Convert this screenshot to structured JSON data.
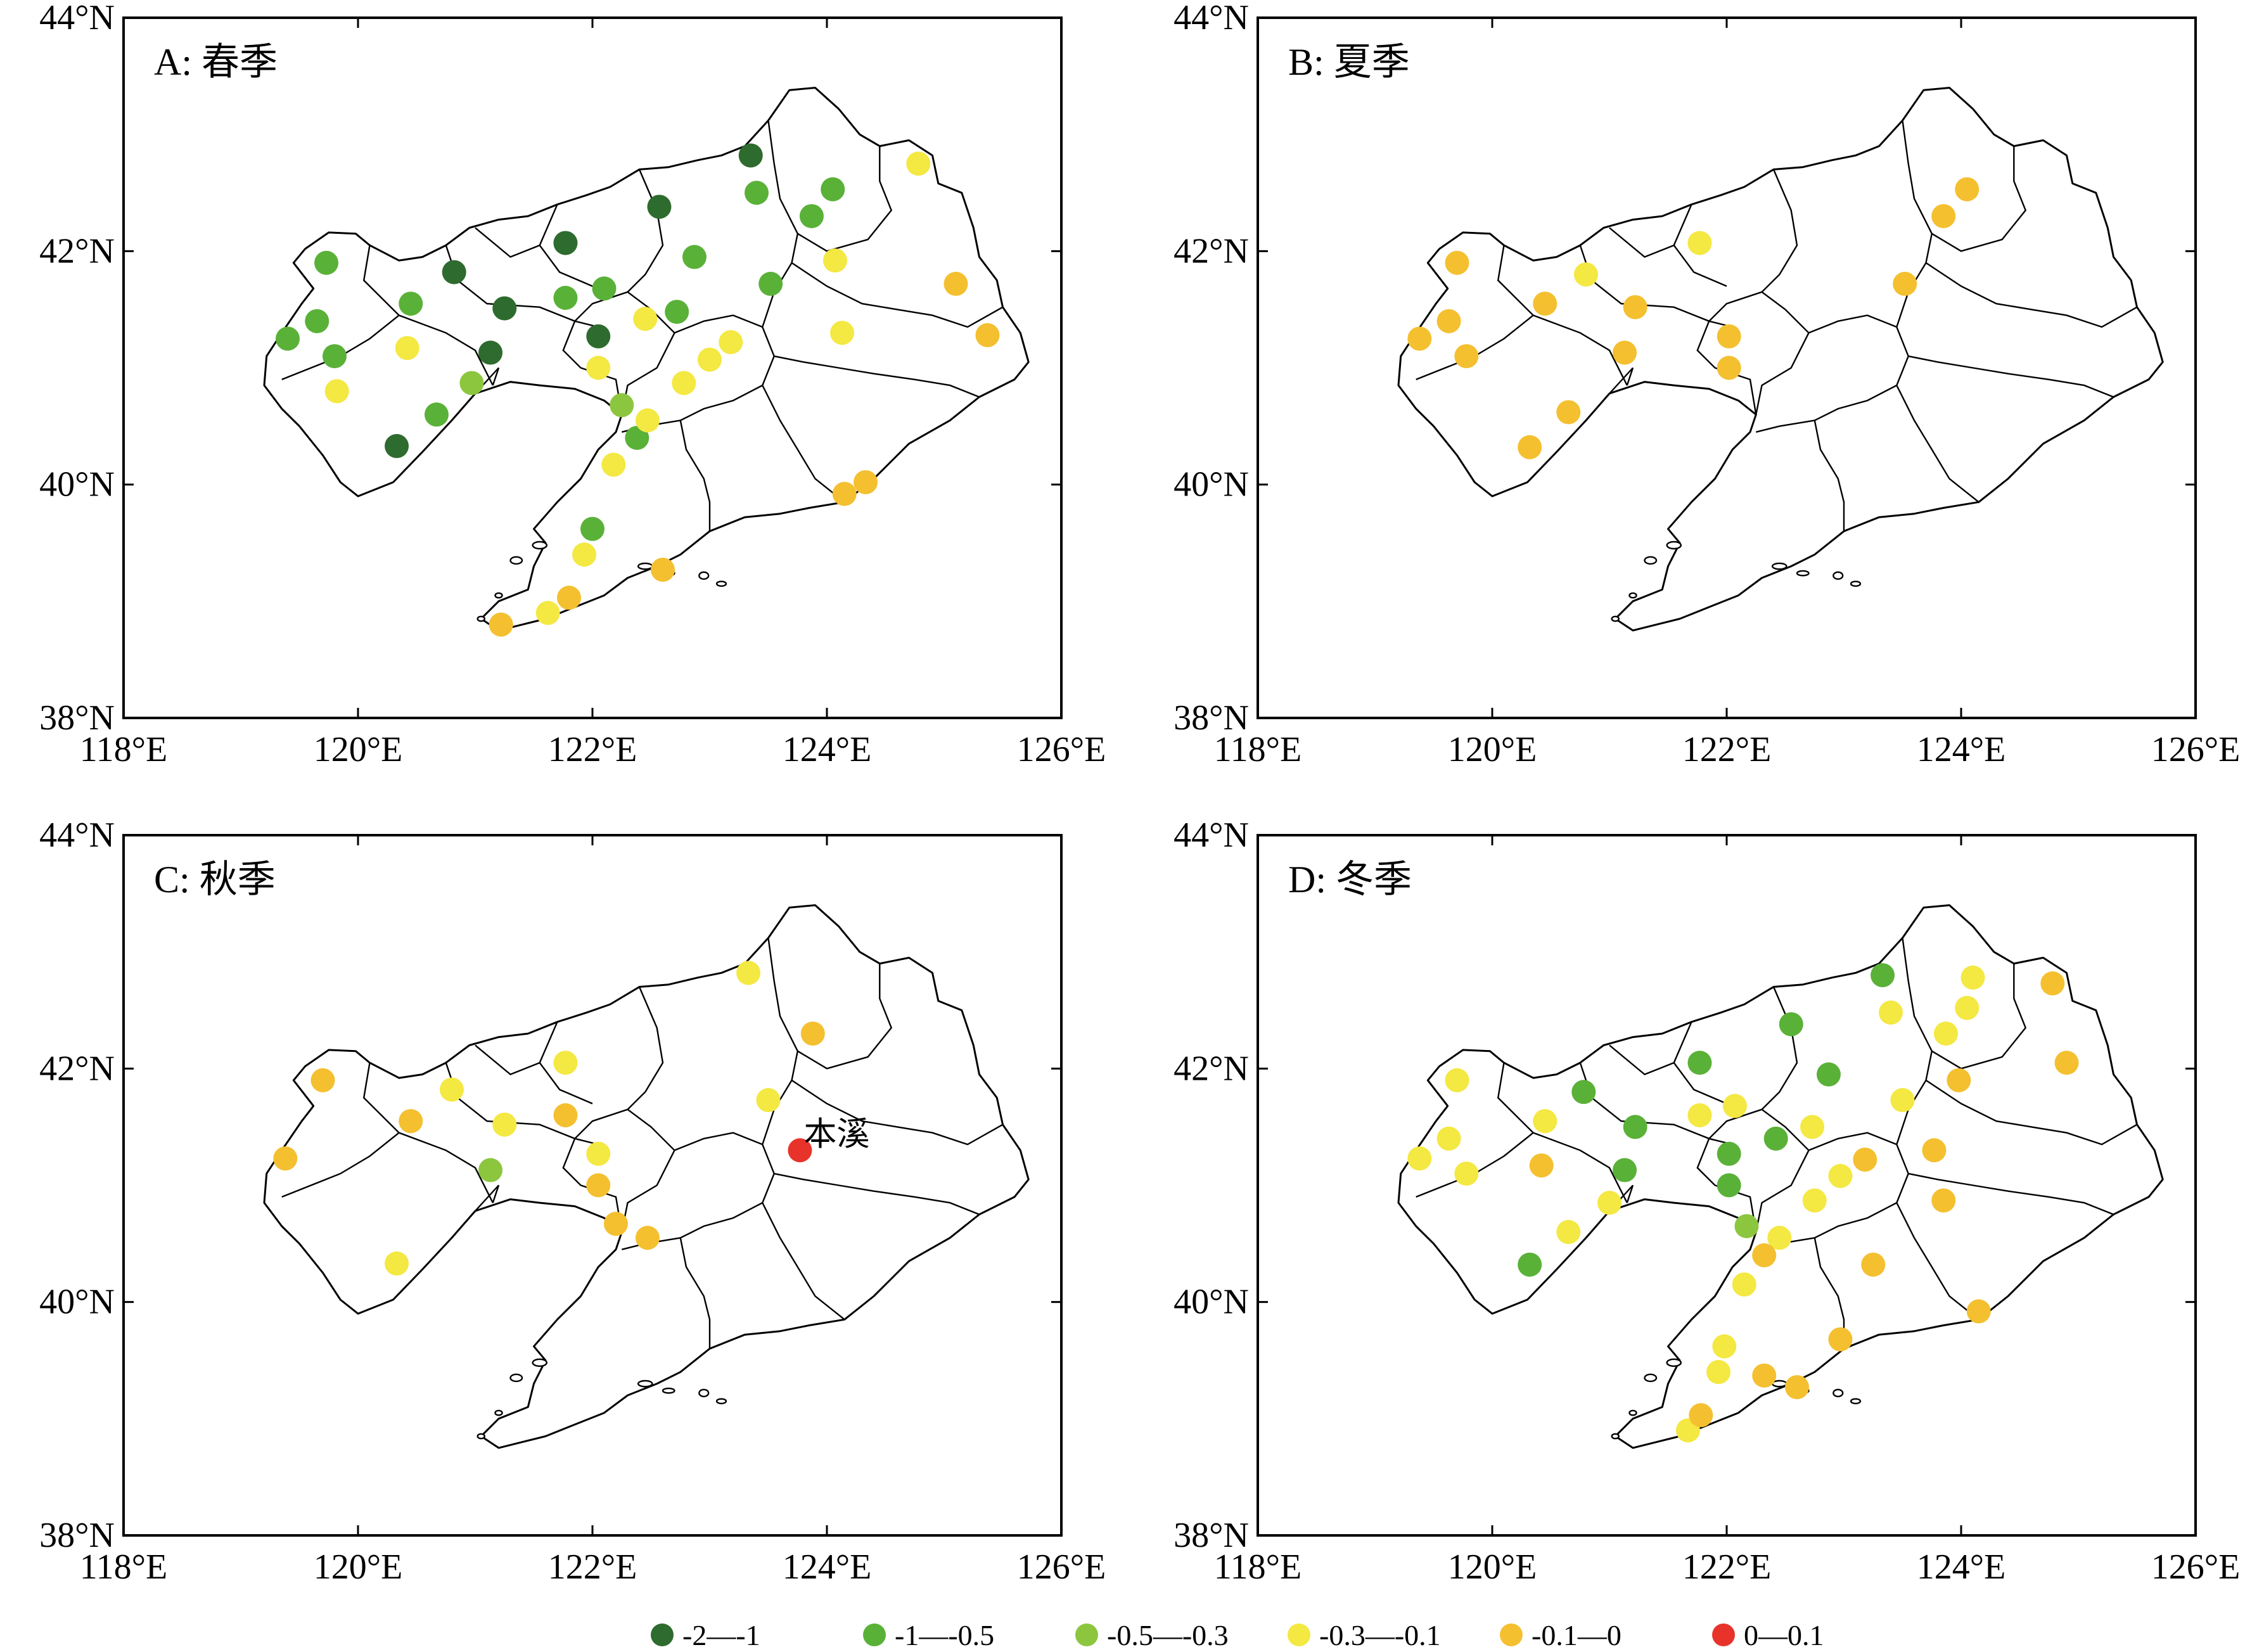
{
  "map": {
    "x_ticks": [
      "118°E",
      "120°E",
      "122°E",
      "124°E",
      "126°E"
    ],
    "y_ticks": [
      "44°N",
      "42°N",
      "40°N",
      "38°N"
    ],
    "colors": {
      "c1": "#2e6b2e",
      "c2": "#5ab138",
      "c3": "#8cc63f",
      "c4": "#f4e842",
      "c5": "#f4c030",
      "c6": "#e8332a"
    },
    "legend": [
      {
        "key": "c1",
        "label": "-2—-1"
      },
      {
        "key": "c2",
        "label": "-1—-0.5"
      },
      {
        "key": "c3",
        "label": "-0.5—-0.3"
      },
      {
        "key": "c4",
        "label": "-0.3—-0.1"
      },
      {
        "key": "c5",
        "label": "-0.1—0"
      },
      {
        "key": "c6",
        "label": "0—0.1"
      }
    ],
    "panels": [
      {
        "title": "A: 春季",
        "stations": [
          {
            "lon": 123.35,
            "lat": 42.82,
            "c": "c1"
          },
          {
            "lon": 122.57,
            "lat": 42.38,
            "c": "c1"
          },
          {
            "lon": 121.77,
            "lat": 42.07,
            "c": "c1"
          },
          {
            "lon": 120.82,
            "lat": 41.82,
            "c": "c1"
          },
          {
            "lon": 121.25,
            "lat": 41.51,
            "c": "c1"
          },
          {
            "lon": 121.13,
            "lat": 41.13,
            "c": "c1"
          },
          {
            "lon": 122.05,
            "lat": 41.27,
            "c": "c1"
          },
          {
            "lon": 120.33,
            "lat": 40.33,
            "c": "c1"
          },
          {
            "lon": 123.4,
            "lat": 42.5,
            "c": "c2"
          },
          {
            "lon": 124.05,
            "lat": 42.53,
            "c": "c2"
          },
          {
            "lon": 123.87,
            "lat": 42.3,
            "c": "c2"
          },
          {
            "lon": 119.73,
            "lat": 41.9,
            "c": "c2"
          },
          {
            "lon": 122.87,
            "lat": 41.95,
            "c": "c2"
          },
          {
            "lon": 120.45,
            "lat": 41.55,
            "c": "c2"
          },
          {
            "lon": 121.77,
            "lat": 41.6,
            "c": "c2"
          },
          {
            "lon": 122.1,
            "lat": 41.68,
            "c": "c2"
          },
          {
            "lon": 123.52,
            "lat": 41.72,
            "c": "c2"
          },
          {
            "lon": 119.65,
            "lat": 41.4,
            "c": "c2"
          },
          {
            "lon": 119.4,
            "lat": 41.25,
            "c": "c2"
          },
          {
            "lon": 119.8,
            "lat": 41.1,
            "c": "c2"
          },
          {
            "lon": 122.72,
            "lat": 41.48,
            "c": "c2"
          },
          {
            "lon": 120.67,
            "lat": 40.6,
            "c": "c2"
          },
          {
            "lon": 122.38,
            "lat": 40.4,
            "c": "c2"
          },
          {
            "lon": 122.0,
            "lat": 39.62,
            "c": "c2"
          },
          {
            "lon": 120.97,
            "lat": 40.87,
            "c": "c3"
          },
          {
            "lon": 122.25,
            "lat": 40.68,
            "c": "c3"
          },
          {
            "lon": 124.78,
            "lat": 42.75,
            "c": "c4"
          },
          {
            "lon": 124.07,
            "lat": 41.92,
            "c": "c4"
          },
          {
            "lon": 122.45,
            "lat": 41.42,
            "c": "c4"
          },
          {
            "lon": 124.13,
            "lat": 41.3,
            "c": "c4"
          },
          {
            "lon": 123.18,
            "lat": 41.22,
            "c": "c4"
          },
          {
            "lon": 120.42,
            "lat": 41.17,
            "c": "c4"
          },
          {
            "lon": 123.0,
            "lat": 41.07,
            "c": "c4"
          },
          {
            "lon": 122.05,
            "lat": 41.0,
            "c": "c4"
          },
          {
            "lon": 122.78,
            "lat": 40.87,
            "c": "c4"
          },
          {
            "lon": 119.82,
            "lat": 40.8,
            "c": "c4"
          },
          {
            "lon": 122.47,
            "lat": 40.55,
            "c": "c4"
          },
          {
            "lon": 122.18,
            "lat": 40.17,
            "c": "c4"
          },
          {
            "lon": 121.93,
            "lat": 39.4,
            "c": "c4"
          },
          {
            "lon": 121.62,
            "lat": 38.9,
            "c": "c4"
          },
          {
            "lon": 125.1,
            "lat": 41.72,
            "c": "c5"
          },
          {
            "lon": 125.37,
            "lat": 41.28,
            "c": "c5"
          },
          {
            "lon": 124.33,
            "lat": 40.02,
            "c": "c5"
          },
          {
            "lon": 124.15,
            "lat": 39.92,
            "c": "c5"
          },
          {
            "lon": 121.8,
            "lat": 39.03,
            "c": "c5"
          },
          {
            "lon": 122.6,
            "lat": 39.27,
            "c": "c5"
          },
          {
            "lon": 121.22,
            "lat": 38.8,
            "c": "c5"
          }
        ]
      },
      {
        "title": "B: 夏季",
        "stations": [
          {
            "lon": 121.77,
            "lat": 42.07,
            "c": "c4"
          },
          {
            "lon": 120.8,
            "lat": 41.8,
            "c": "c4"
          },
          {
            "lon": 124.05,
            "lat": 42.53,
            "c": "c5"
          },
          {
            "lon": 123.85,
            "lat": 42.3,
            "c": "c5"
          },
          {
            "lon": 119.7,
            "lat": 41.9,
            "c": "c5"
          },
          {
            "lon": 123.52,
            "lat": 41.72,
            "c": "c5"
          },
          {
            "lon": 120.45,
            "lat": 41.55,
            "c": "c5"
          },
          {
            "lon": 121.22,
            "lat": 41.52,
            "c": "c5"
          },
          {
            "lon": 119.63,
            "lat": 41.4,
            "c": "c5"
          },
          {
            "lon": 122.02,
            "lat": 41.27,
            "c": "c5"
          },
          {
            "lon": 119.38,
            "lat": 41.25,
            "c": "c5"
          },
          {
            "lon": 121.13,
            "lat": 41.13,
            "c": "c5"
          },
          {
            "lon": 119.78,
            "lat": 41.1,
            "c": "c5"
          },
          {
            "lon": 122.02,
            "lat": 41.0,
            "c": "c5"
          },
          {
            "lon": 120.65,
            "lat": 40.62,
            "c": "c5"
          },
          {
            "lon": 120.32,
            "lat": 40.32,
            "c": "c5"
          }
        ]
      },
      {
        "title": "C: 秋季",
        "station_label": {
          "text": "本溪",
          "lon": 123.77,
          "lat": 41.3
        },
        "stations": [
          {
            "lon": 121.13,
            "lat": 41.13,
            "c": "c3"
          },
          {
            "lon": 123.33,
            "lat": 42.82,
            "c": "c4"
          },
          {
            "lon": 120.8,
            "lat": 41.82,
            "c": "c4"
          },
          {
            "lon": 121.77,
            "lat": 42.05,
            "c": "c4"
          },
          {
            "lon": 123.5,
            "lat": 41.73,
            "c": "c4"
          },
          {
            "lon": 121.25,
            "lat": 41.52,
            "c": "c4"
          },
          {
            "lon": 122.05,
            "lat": 41.27,
            "c": "c4"
          },
          {
            "lon": 120.33,
            "lat": 40.33,
            "c": "c4"
          },
          {
            "lon": 123.88,
            "lat": 42.3,
            "c": "c5"
          },
          {
            "lon": 119.7,
            "lat": 41.9,
            "c": "c5"
          },
          {
            "lon": 120.45,
            "lat": 41.55,
            "c": "c5"
          },
          {
            "lon": 121.77,
            "lat": 41.6,
            "c": "c5"
          },
          {
            "lon": 119.38,
            "lat": 41.23,
            "c": "c5"
          },
          {
            "lon": 122.05,
            "lat": 41.0,
            "c": "c5"
          },
          {
            "lon": 122.2,
            "lat": 40.67,
            "c": "c5"
          },
          {
            "lon": 122.47,
            "lat": 40.55,
            "c": "c5"
          },
          {
            "lon": 123.77,
            "lat": 41.3,
            "c": "c6"
          }
        ]
      },
      {
        "title": "D: 冬季",
        "stations": [
          {
            "lon": 123.33,
            "lat": 42.8,
            "c": "c2"
          },
          {
            "lon": 122.55,
            "lat": 42.38,
            "c": "c2"
          },
          {
            "lon": 121.77,
            "lat": 42.05,
            "c": "c2"
          },
          {
            "lon": 122.87,
            "lat": 41.95,
            "c": "c2"
          },
          {
            "lon": 120.78,
            "lat": 41.8,
            "c": "c2"
          },
          {
            "lon": 121.22,
            "lat": 41.5,
            "c": "c2"
          },
          {
            "lon": 122.42,
            "lat": 41.4,
            "c": "c2"
          },
          {
            "lon": 122.02,
            "lat": 41.27,
            "c": "c2"
          },
          {
            "lon": 121.13,
            "lat": 41.13,
            "c": "c2"
          },
          {
            "lon": 122.02,
            "lat": 41.0,
            "c": "c2"
          },
          {
            "lon": 120.32,
            "lat": 40.32,
            "c": "c2"
          },
          {
            "lon": 122.17,
            "lat": 40.65,
            "c": "c3"
          },
          {
            "lon": 124.1,
            "lat": 42.78,
            "c": "c4"
          },
          {
            "lon": 123.4,
            "lat": 42.48,
            "c": "c4"
          },
          {
            "lon": 124.05,
            "lat": 42.52,
            "c": "c4"
          },
          {
            "lon": 123.87,
            "lat": 42.3,
            "c": "c4"
          },
          {
            "lon": 119.7,
            "lat": 41.9,
            "c": "c4"
          },
          {
            "lon": 123.5,
            "lat": 41.73,
            "c": "c4"
          },
          {
            "lon": 121.77,
            "lat": 41.6,
            "c": "c4"
          },
          {
            "lon": 122.07,
            "lat": 41.68,
            "c": "c4"
          },
          {
            "lon": 120.45,
            "lat": 41.55,
            "c": "c4"
          },
          {
            "lon": 122.73,
            "lat": 41.5,
            "c": "c4"
          },
          {
            "lon": 119.63,
            "lat": 41.4,
            "c": "c4"
          },
          {
            "lon": 119.38,
            "lat": 41.23,
            "c": "c4"
          },
          {
            "lon": 119.78,
            "lat": 41.1,
            "c": "c4"
          },
          {
            "lon": 122.97,
            "lat": 41.08,
            "c": "c4"
          },
          {
            "lon": 121.0,
            "lat": 40.85,
            "c": "c4"
          },
          {
            "lon": 122.75,
            "lat": 40.87,
            "c": "c4"
          },
          {
            "lon": 120.65,
            "lat": 40.6,
            "c": "c4"
          },
          {
            "lon": 122.45,
            "lat": 40.55,
            "c": "c4"
          },
          {
            "lon": 122.15,
            "lat": 40.15,
            "c": "c4"
          },
          {
            "lon": 121.98,
            "lat": 39.62,
            "c": "c4"
          },
          {
            "lon": 121.93,
            "lat": 39.4,
            "c": "c4"
          },
          {
            "lon": 121.67,
            "lat": 38.9,
            "c": "c4"
          },
          {
            "lon": 124.78,
            "lat": 42.73,
            "c": "c5"
          },
          {
            "lon": 124.9,
            "lat": 42.05,
            "c": "c5"
          },
          {
            "lon": 123.98,
            "lat": 41.9,
            "c": "c5"
          },
          {
            "lon": 123.77,
            "lat": 41.3,
            "c": "c5"
          },
          {
            "lon": 123.18,
            "lat": 41.22,
            "c": "c5"
          },
          {
            "lon": 120.42,
            "lat": 41.17,
            "c": "c5"
          },
          {
            "lon": 123.85,
            "lat": 40.87,
            "c": "c5"
          },
          {
            "lon": 122.32,
            "lat": 40.4,
            "c": "c5"
          },
          {
            "lon": 123.25,
            "lat": 40.32,
            "c": "c5"
          },
          {
            "lon": 124.15,
            "lat": 39.92,
            "c": "c5"
          },
          {
            "lon": 122.97,
            "lat": 39.68,
            "c": "c5"
          },
          {
            "lon": 122.32,
            "lat": 39.37,
            "c": "c5"
          },
          {
            "lon": 122.6,
            "lat": 39.27,
            "c": "c5"
          },
          {
            "lon": 121.78,
            "lat": 39.03,
            "c": "c5"
          }
        ]
      }
    ]
  }
}
